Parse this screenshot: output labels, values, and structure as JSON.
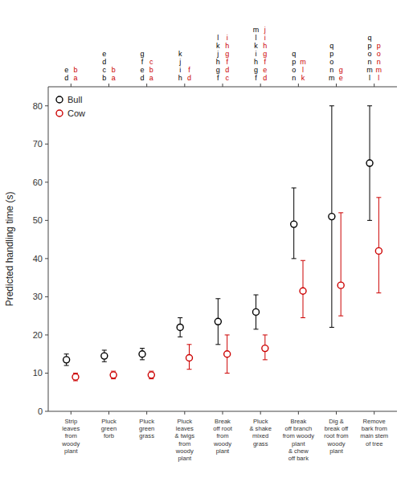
{
  "chart_data": {
    "type": "errorbar",
    "ylabel": "Predicted handling time (s)",
    "categories": [
      "Strip\nleaves\nfrom\nwoody\nplant",
      "Pluck\ngreen\nforb",
      "Pluck\ngreen\ngrass",
      "Pluck\nleaves\n& twigs\nfrom\nwoody\nplant",
      "Break\noff root\nfrom\nwoody\nplant",
      "Pluck\n& shake\nmixed\ngrass",
      "Break\noff branch\nfrom woody\nplant\n& chew\noff bark",
      "Dig &\nbreak off\nroot from\nwoody\nplant",
      "Remove\nbark from\nmain stem\nof tree"
    ],
    "series": [
      {
        "name": "Bull",
        "color": "#000000",
        "values": [
          13.5,
          14.5,
          15.0,
          22.0,
          23.5,
          26.0,
          49.0,
          51.0,
          65.0
        ],
        "error_low": [
          1.5,
          1.5,
          1.5,
          2.5,
          6.0,
          4.5,
          9.0,
          29.0,
          15.0
        ],
        "error_high": [
          1.5,
          1.5,
          1.5,
          2.5,
          6.0,
          4.5,
          9.5,
          29.0,
          15.0
        ],
        "letters": [
          [
            "e",
            "d"
          ],
          [
            "e",
            "d",
            "c",
            "b"
          ],
          [
            "g",
            "f",
            "e",
            "d"
          ],
          [
            "k",
            "j",
            "i",
            "h"
          ],
          [
            "l",
            "k",
            "j",
            "h",
            "g",
            "f"
          ],
          [
            "m",
            "l",
            "k",
            "i",
            "h",
            "g",
            "f"
          ],
          [
            "q",
            "p",
            "o",
            "n"
          ],
          [
            "q",
            "p",
            "o",
            "n",
            "m"
          ],
          [
            "q",
            "p",
            "o",
            "n",
            "m",
            "l"
          ]
        ]
      },
      {
        "name": "Cow",
        "color": "#cc0000",
        "values": [
          9.0,
          9.5,
          9.5,
          14.0,
          15.0,
          16.5,
          31.5,
          33.0,
          42.0
        ],
        "error_low": [
          1.0,
          1.0,
          1.0,
          3.0,
          5.0,
          3.0,
          7.0,
          8.0,
          11.0
        ],
        "error_high": [
          1.0,
          1.0,
          1.0,
          3.5,
          5.0,
          3.5,
          8.0,
          19.0,
          14.0
        ],
        "letters": [
          [
            "b",
            "a"
          ],
          [
            "b",
            "a"
          ],
          [
            "c",
            "b",
            "a"
          ],
          [
            "f",
            "d"
          ],
          [
            "i",
            "h",
            "g",
            "f",
            "d",
            "c"
          ],
          [
            "j",
            "i",
            "h",
            "g",
            "f",
            "e",
            "d"
          ],
          [
            "m",
            "l",
            "k"
          ],
          [
            "g",
            "e"
          ],
          [
            "p",
            "o",
            "n",
            "m",
            "l"
          ]
        ]
      }
    ],
    "ylim": [
      0,
      85
    ],
    "yticks": [
      0,
      10,
      20,
      30,
      40,
      50,
      60,
      70,
      80
    ],
    "grid": false,
    "legend": "upper-left",
    "marker": "circle"
  }
}
